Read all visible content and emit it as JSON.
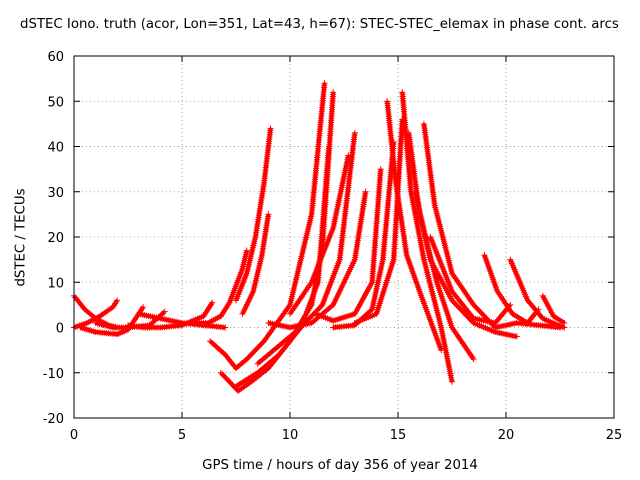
{
  "chart_data": {
    "type": "scatter",
    "title": "dSTEC Iono. truth (acor, Lon=351, Lat=43, h=67): STEC-STEC_elemax in phase cont. arcs",
    "xlabel": "GPS time / hours of day 356 of year 2014",
    "ylabel": "dSTEC  / TECUs",
    "xlim": [
      0,
      25
    ],
    "ylim": [
      -20,
      60
    ],
    "x_ticks": [
      0,
      5,
      10,
      15,
      20,
      25
    ],
    "y_ticks": [
      -20,
      -10,
      0,
      10,
      20,
      30,
      40,
      50,
      60
    ],
    "grid": true,
    "marker": "+",
    "color": "#ff0000",
    "series": [
      {
        "x": [
          0.0,
          0.5,
          1.0,
          1.6,
          2.0
        ],
        "y": [
          7.0,
          4.0,
          2.0,
          0.5,
          0.0
        ]
      },
      {
        "x": [
          0.0,
          0.6,
          1.2,
          1.8,
          2.0
        ],
        "y": [
          0.0,
          1.0,
          2.5,
          4.5,
          6.0
        ]
      },
      {
        "x": [
          0.3,
          1.0,
          2.0,
          2.5,
          3.2
        ],
        "y": [
          0.0,
          -1.0,
          -1.5,
          -0.5,
          4.5
        ]
      },
      {
        "x": [
          1.0,
          1.8,
          2.5,
          3.5,
          4.2
        ],
        "y": [
          1.0,
          0.0,
          0.0,
          0.5,
          3.5
        ]
      },
      {
        "x": [
          2.5,
          3.2,
          4.0,
          5.0,
          6.0,
          6.4
        ],
        "y": [
          0.5,
          0.0,
          0.0,
          0.5,
          2.5,
          5.5
        ]
      },
      {
        "x": [
          3.0,
          4.0,
          5.0,
          6.0,
          7.0
        ],
        "y": [
          3.0,
          2.0,
          1.0,
          0.5,
          0.0
        ]
      },
      {
        "x": [
          5.5,
          6.2,
          6.8,
          7.2,
          7.8,
          8.0
        ],
        "y": [
          1.0,
          1.0,
          2.5,
          5.5,
          13.0,
          17.0
        ]
      },
      {
        "x": [
          7.5,
          8.0,
          8.4,
          8.8,
          9.1
        ],
        "y": [
          6.0,
          12.0,
          20.0,
          32.0,
          44.0
        ]
      },
      {
        "x": [
          7.8,
          8.3,
          8.7,
          9.0
        ],
        "y": [
          3.0,
          8.0,
          16.0,
          25.0
        ]
      },
      {
        "x": [
          6.3,
          7.0,
          7.5,
          8.0,
          8.8,
          10.0,
          11.0,
          11.6
        ],
        "y": [
          -3.0,
          -6.0,
          -9.0,
          -7.0,
          -3.0,
          5.0,
          25.0,
          54.0
        ]
      },
      {
        "x": [
          6.8,
          7.2,
          7.6,
          8.2,
          9.0,
          10.0,
          11.0,
          11.5,
          12.0
        ],
        "y": [
          -10.0,
          -12.0,
          -14.0,
          -12.0,
          -9.0,
          -3.0,
          5.0,
          18.0,
          52.0
        ]
      },
      {
        "x": [
          7.5,
          8.5,
          9.5,
          10.5,
          11.3,
          11.8
        ],
        "y": [
          -13.0,
          -10.0,
          -6.0,
          0.0,
          10.0,
          40.0
        ]
      },
      {
        "x": [
          8.5,
          9.5,
          10.5,
          11.5,
          12.3,
          13.0
        ],
        "y": [
          -8.0,
          -4.0,
          0.0,
          5.0,
          15.0,
          43.0
        ]
      },
      {
        "x": [
          9.0,
          10.0,
          11.0,
          12.0,
          13.0,
          13.5
        ],
        "y": [
          1.0,
          0.0,
          1.0,
          5.0,
          15.0,
          30.0
        ]
      },
      {
        "x": [
          10.0,
          11.0,
          12.0,
          12.7
        ],
        "y": [
          3.0,
          10.0,
          22.0,
          38.0
        ]
      },
      {
        "x": [
          11.2,
          12.0,
          13.0,
          13.8,
          14.2
        ],
        "y": [
          3.0,
          1.5,
          3.0,
          10.0,
          35.0
        ]
      },
      {
        "x": [
          12.0,
          13.0,
          13.8,
          14.3,
          14.8
        ],
        "y": [
          0.0,
          0.5,
          4.0,
          15.0,
          41.0
        ]
      },
      {
        "x": [
          13.0,
          14.0,
          14.8,
          15.2
        ],
        "y": [
          1.0,
          3.0,
          15.0,
          46.0
        ]
      },
      {
        "x": [
          14.5,
          14.9,
          15.4,
          16.0,
          17.0
        ],
        "y": [
          50.0,
          32.0,
          16.0,
          8.0,
          -5.0
        ]
      },
      {
        "x": [
          15.2,
          15.6,
          16.2,
          17.0,
          17.5
        ],
        "y": [
          52.0,
          30.0,
          15.0,
          0.0,
          -12.0
        ]
      },
      {
        "x": [
          15.5,
          16.0,
          16.8,
          17.5,
          18.5
        ],
        "y": [
          43.0,
          25.0,
          10.0,
          0.0,
          -7.0
        ]
      },
      {
        "x": [
          16.2,
          16.7,
          17.5,
          18.5,
          19.5
        ],
        "y": [
          45.0,
          27.0,
          12.0,
          5.0,
          0.0
        ]
      },
      {
        "x": [
          15.8,
          16.5,
          17.5,
          18.5,
          19.5,
          20.5
        ],
        "y": [
          30.0,
          15.0,
          6.0,
          1.0,
          -1.0,
          -2.0
        ]
      },
      {
        "x": [
          16.5,
          17.5,
          18.5,
          19.5,
          20.2
        ],
        "y": [
          20.0,
          8.0,
          2.0,
          1.0,
          5.0
        ]
      },
      {
        "x": [
          19.0,
          19.6,
          20.3,
          21.0,
          21.5
        ],
        "y": [
          16.0,
          8.0,
          3.0,
          1.0,
          4.0
        ]
      },
      {
        "x": [
          20.2,
          21.0,
          21.7,
          22.4,
          22.7
        ],
        "y": [
          15.0,
          6.0,
          2.0,
          0.5,
          0.0
        ]
      },
      {
        "x": [
          21.7,
          22.2,
          22.7
        ],
        "y": [
          7.0,
          2.5,
          1.0
        ]
      },
      {
        "x": [
          19.5,
          20.5,
          21.5,
          22.5
        ],
        "y": [
          0.0,
          1.0,
          0.5,
          0.0
        ]
      }
    ]
  }
}
